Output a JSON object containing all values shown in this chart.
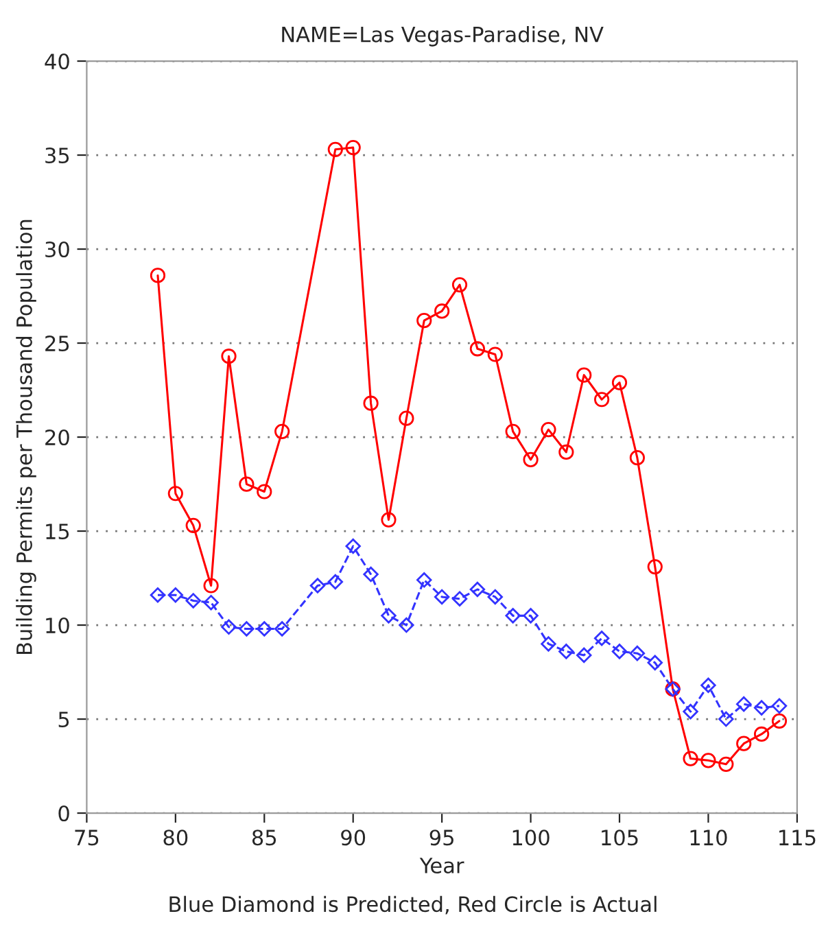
{
  "chart_data": {
    "type": "line",
    "title": "NAME=Las Vegas-Paradise, NV",
    "xlabel": "Year",
    "ylabel": "Building Permits per Thousand Population",
    "annotations": [
      "Blue Diamond is Predicted, Red Circle is Actual"
    ],
    "series": [
      {
        "color": "#ff0000",
        "line_style": "solid",
        "marker": "circle",
        "x": [
          79,
          80,
          81,
          82,
          83,
          84,
          85,
          86,
          89,
          90,
          91,
          92,
          93,
          94,
          95,
          96,
          97,
          98,
          99,
          100,
          101,
          102,
          103,
          104,
          105,
          106,
          107,
          108,
          109,
          110,
          111,
          112,
          113,
          114
        ],
        "values": [
          28.6,
          17.0,
          15.3,
          12.1,
          24.3,
          17.5,
          17.1,
          20.3,
          35.3,
          35.4,
          21.8,
          15.6,
          21.0,
          26.2,
          26.7,
          28.1,
          24.7,
          24.4,
          20.3,
          18.8,
          20.4,
          19.2,
          23.3,
          22.0,
          22.9,
          18.9,
          13.1,
          6.6,
          2.9,
          2.8,
          2.6,
          3.7,
          4.2,
          4.9
        ]
      },
      {
        "color": "#3333ff",
        "line_style": "dashed",
        "marker": "diamond",
        "x": [
          79,
          80,
          81,
          82,
          83,
          84,
          85,
          86,
          88,
          89,
          90,
          91,
          92,
          93,
          94,
          95,
          96,
          97,
          98,
          99,
          100,
          101,
          102,
          103,
          104,
          105,
          106,
          107,
          108,
          109,
          110,
          111,
          112,
          113,
          114
        ],
        "values": [
          11.6,
          11.6,
          11.3,
          11.2,
          9.9,
          9.8,
          9.8,
          9.8,
          12.1,
          12.3,
          14.2,
          12.7,
          10.5,
          10.0,
          12.4,
          11.5,
          11.4,
          11.9,
          11.5,
          10.5,
          10.5,
          9.0,
          8.6,
          8.4,
          9.3,
          8.6,
          8.5,
          8.0,
          6.6,
          5.4,
          6.8,
          5.0,
          5.8,
          5.6,
          5.7
        ]
      }
    ],
    "xlim": [
      75,
      115
    ],
    "xticks": [
      75,
      80,
      85,
      90,
      95,
      100,
      105,
      110,
      115
    ],
    "ylim": [
      0,
      40
    ],
    "yticks": [
      0,
      5,
      10,
      15,
      20,
      25,
      30,
      35,
      40
    ],
    "grid": "y",
    "legend": false
  }
}
